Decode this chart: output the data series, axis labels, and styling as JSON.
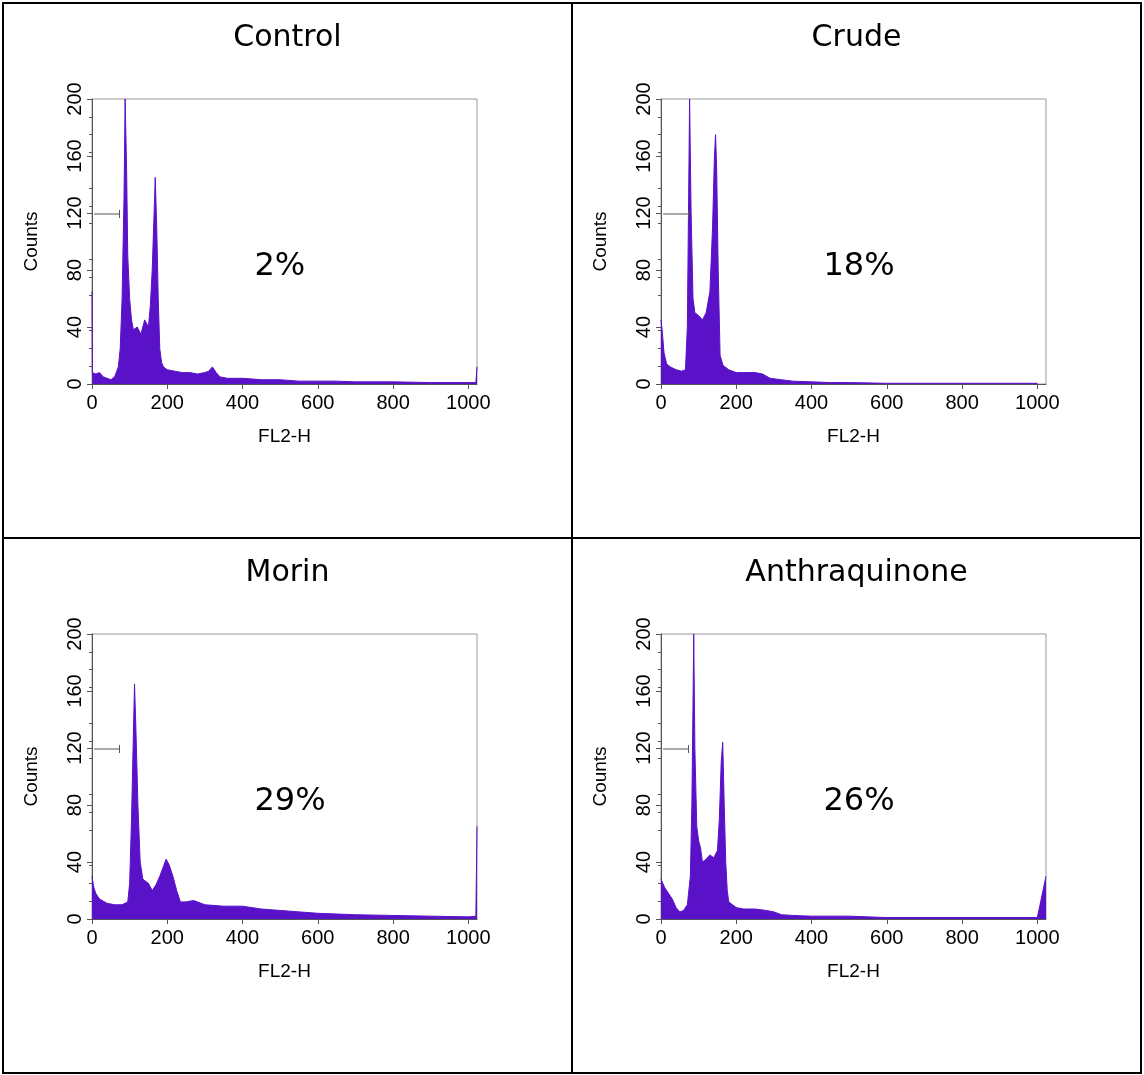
{
  "chart_data": [
    {
      "type": "area",
      "title": "Control",
      "xlabel": "FL2-H",
      "ylabel": "Counts",
      "xlim": [
        0,
        1023
      ],
      "xticks": [
        0,
        200,
        400,
        600,
        800,
        1000
      ],
      "ylim": [
        0,
        200
      ],
      "yticks": [
        0,
        40,
        80,
        120,
        160,
        200
      ],
      "grid": false,
      "legend": false,
      "marker": "none",
      "annotations": [
        "2%"
      ],
      "series": [
        {
          "color": "#5a12c8",
          "x": [
            0,
            1,
            10,
            20,
            30,
            40,
            50,
            60,
            70,
            75,
            80,
            85,
            88,
            92,
            95,
            100,
            105,
            110,
            120,
            130,
            140,
            150,
            155,
            160,
            165,
            168,
            172,
            176,
            180,
            185,
            190,
            200,
            220,
            240,
            260,
            280,
            300,
            310,
            320,
            330,
            340,
            360,
            380,
            400,
            450,
            500,
            550,
            600,
            650,
            700,
            800,
            900,
            1000,
            1020,
            1023
          ],
          "values": [
            65,
            8,
            7,
            8,
            5,
            4,
            3,
            5,
            12,
            25,
            60,
            130,
            200,
            150,
            90,
            60,
            45,
            38,
            40,
            35,
            45,
            40,
            55,
            80,
            120,
            145,
            110,
            60,
            25,
            15,
            12,
            10,
            9,
            8,
            8,
            7,
            8,
            9,
            12,
            8,
            5,
            4,
            4,
            4,
            3,
            3,
            2,
            2,
            2,
            1.5,
            1.5,
            1,
            1,
            1,
            12
          ]
        }
      ]
    },
    {
      "type": "area",
      "title": "Crude",
      "xlabel": "FL2-H",
      "ylabel": "Counts",
      "xlim": [
        0,
        1023
      ],
      "xticks": [
        0,
        200,
        400,
        600,
        800,
        1000
      ],
      "ylim": [
        0,
        200
      ],
      "yticks": [
        0,
        40,
        80,
        120,
        160,
        200
      ],
      "grid": false,
      "legend": false,
      "marker": "none",
      "annotations": [
        "18%"
      ],
      "series": [
        {
          "color": "#5a12c8",
          "x": [
            0,
            3,
            8,
            15,
            25,
            40,
            55,
            65,
            70,
            73,
            76,
            80,
            85,
            90,
            100,
            110,
            120,
            130,
            137,
            142,
            145,
            148,
            152,
            157,
            165,
            180,
            200,
            220,
            250,
            270,
            290,
            320,
            350,
            400,
            450,
            500,
            600,
            800,
            1000
          ],
          "values": [
            45,
            38,
            22,
            14,
            12,
            10,
            9,
            10,
            40,
            120,
            200,
            120,
            60,
            50,
            48,
            45,
            50,
            65,
            110,
            160,
            175,
            150,
            80,
            20,
            13,
            10,
            8,
            8,
            8,
            7,
            4,
            3,
            2,
            1.5,
            1,
            1,
            0.5,
            0.5,
            0.5
          ]
        }
      ]
    },
    {
      "type": "area",
      "title": "Morin",
      "xlabel": "FL2-H",
      "ylabel": "Counts",
      "xlim": [
        0,
        1023
      ],
      "xticks": [
        0,
        200,
        400,
        600,
        800,
        1000
      ],
      "ylim": [
        0,
        200
      ],
      "yticks": [
        0,
        40,
        80,
        120,
        160,
        200
      ],
      "grid": false,
      "legend": false,
      "marker": "none",
      "annotations": [
        "29%"
      ],
      "series": [
        {
          "color": "#5a12c8",
          "x": [
            0,
            5,
            10,
            20,
            40,
            60,
            80,
            95,
            100,
            105,
            110,
            113,
            117,
            122,
            128,
            135,
            150,
            160,
            170,
            180,
            190,
            197,
            205,
            215,
            225,
            235,
            250,
            270,
            300,
            350,
            400,
            450,
            500,
            600,
            700,
            800,
            900,
            1000,
            1020,
            1023
          ],
          "values": [
            30,
            22,
            18,
            14,
            11,
            10,
            10,
            12,
            25,
            70,
            130,
            165,
            130,
            80,
            40,
            28,
            25,
            20,
            24,
            30,
            37,
            42,
            38,
            30,
            20,
            12,
            12,
            13,
            10,
            9,
            9,
            7,
            6,
            4,
            3,
            2.5,
            2,
            1.5,
            2,
            65
          ]
        }
      ]
    },
    {
      "type": "area",
      "title": "Anthraquinone",
      "xlabel": "FL2-H",
      "ylabel": "Counts",
      "xlim": [
        0,
        1023
      ],
      "xticks": [
        0,
        200,
        400,
        600,
        800,
        1000
      ],
      "ylim": [
        0,
        200
      ],
      "yticks": [
        0,
        40,
        80,
        120,
        160,
        200
      ],
      "grid": false,
      "legend": false,
      "marker": "none",
      "annotations": [
        "26%"
      ],
      "series": [
        {
          "color": "#5a12c8",
          "x": [
            0,
            5,
            10,
            20,
            30,
            40,
            50,
            60,
            70,
            78,
            82,
            85,
            87,
            90,
            95,
            100,
            105,
            110,
            120,
            130,
            140,
            150,
            155,
            160,
            164,
            168,
            172,
            176,
            180,
            200,
            220,
            250,
            280,
            300,
            320,
            350,
            400,
            500,
            600,
            800,
            1000,
            1023
          ],
          "values": [
            28,
            25,
            22,
            18,
            14,
            8,
            5,
            6,
            10,
            30,
            80,
            150,
            200,
            120,
            65,
            55,
            50,
            40,
            42,
            45,
            43,
            48,
            70,
            110,
            124,
            80,
            40,
            20,
            12,
            8,
            7,
            7,
            6,
            5,
            3,
            2.5,
            2,
            2,
            1,
            1,
            1,
            30
          ]
        }
      ]
    }
  ]
}
